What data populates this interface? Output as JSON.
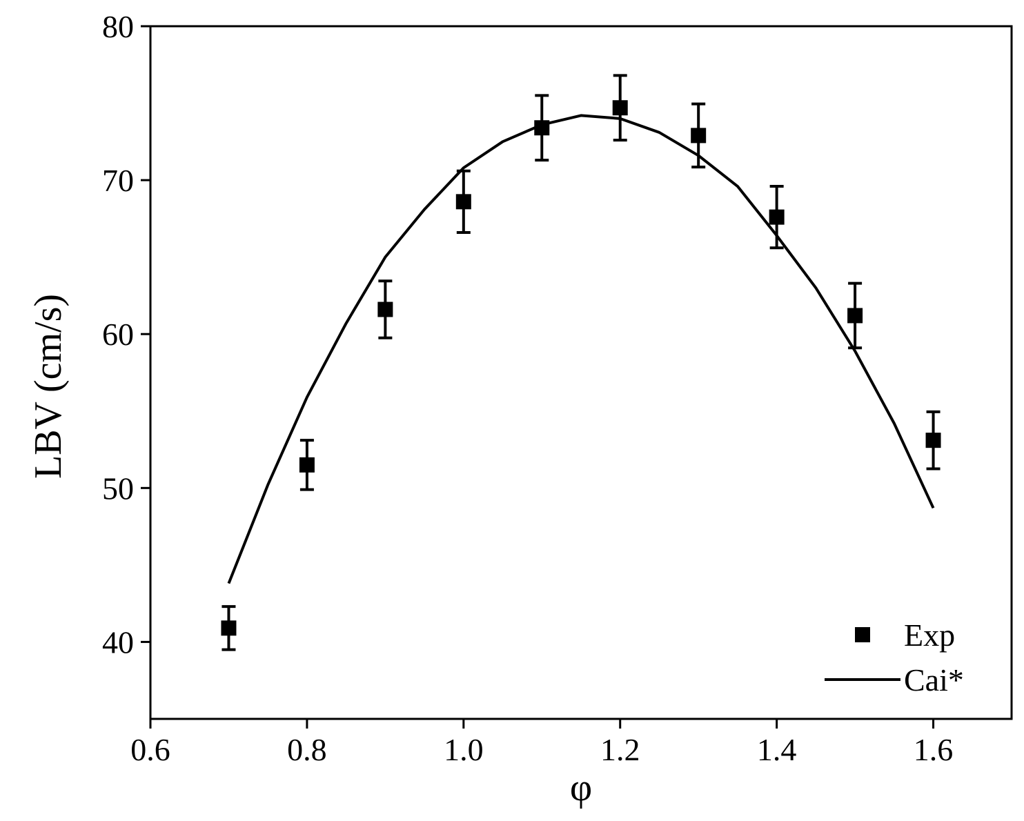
{
  "chart_data": {
    "type": "scatter",
    "x_label": "φ",
    "y_label": "LBV (cm/s)",
    "xlim": [
      0.6,
      1.7
    ],
    "ylim": [
      35,
      80
    ],
    "xticks": [
      0.6,
      0.8,
      {
        "value": 1,
        "label": "1.0"
      },
      1.2,
      1.4,
      1.6
    ],
    "yticks": [
      40,
      50,
      60,
      70,
      80
    ],
    "legend": "lower-right",
    "series": [
      {
        "name": "Exp",
        "style": "marker",
        "color": "#000000",
        "x": [
          0.7,
          0.8,
          0.9,
          1,
          1.1,
          1.2,
          1.3,
          1.4,
          1.5,
          1.6
        ],
        "values": [
          40.9,
          51.5,
          61.6,
          68.6,
          73.4,
          74.7,
          72.9,
          67.6,
          61.2,
          53.1
        ],
        "errors": [
          1.4,
          1.6,
          1.85,
          2.0,
          2.1,
          2.1,
          2.05,
          2.0,
          2.1,
          1.85
        ]
      },
      {
        "name": "Cai*",
        "style": "line",
        "color": "#000000",
        "x": [
          0.7,
          0.75,
          0.8,
          0.85,
          0.9,
          0.95,
          1,
          1.05,
          1.1,
          1.15,
          1.2,
          1.25,
          1.3,
          1.35,
          1.4,
          1.45,
          1.5,
          1.55,
          1.6
        ],
        "values": [
          43.8,
          50.2,
          55.9,
          60.7,
          65.0,
          68.1,
          70.8,
          72.5,
          73.6,
          74.2,
          74.0,
          73.1,
          71.6,
          69.6,
          66.4,
          63.0,
          58.9,
          54.2,
          48.7
        ]
      }
    ]
  }
}
